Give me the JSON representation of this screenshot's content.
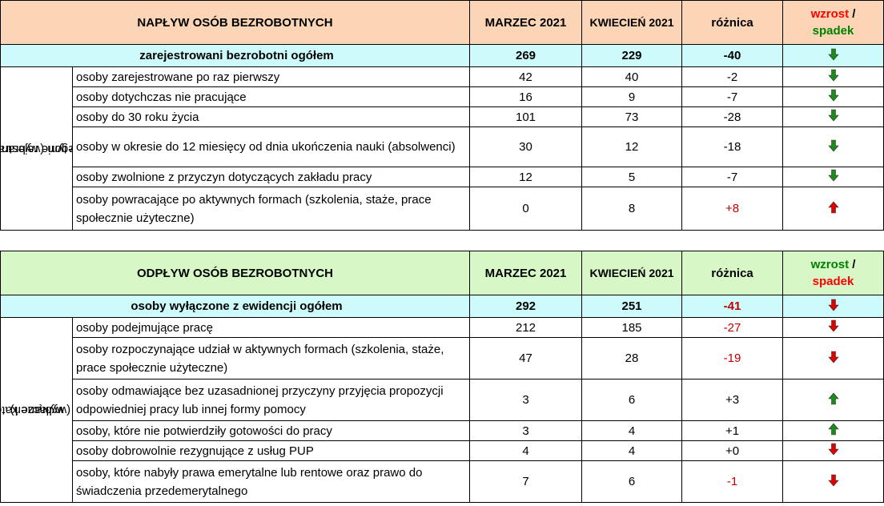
{
  "inflow": {
    "title": "NAPŁYW OSÓB BEZROBOTNYCH",
    "col_march": "MARZEC 2021",
    "col_april": "KWIECIEŃ 2021",
    "col_diff": "różnica",
    "col_trend_up": "wzrost",
    "col_trend_sep": "/",
    "col_trend_down": "spadek",
    "side_label_line1": "w tym (wybrane",
    "side_label_line2": "kategorie rejestracji)",
    "total": {
      "label": "zarejestrowani bezrobotni ogółem",
      "march": "269",
      "april": "229",
      "diff": "-40",
      "trend": "down-green"
    },
    "rows": [
      {
        "label": "osoby zarejestrowane po raz pierwszy",
        "march": "42",
        "april": "40",
        "diff": "-2",
        "trend": "down-green"
      },
      {
        "label": "osoby dotychczas nie pracujące",
        "march": "16",
        "april": "9",
        "diff": "-7",
        "trend": "down-green"
      },
      {
        "label": "osoby do 30 roku życia",
        "march": "101",
        "april": "73",
        "diff": "-28",
        "trend": "down-green"
      },
      {
        "label": "osoby w okresie do 12 miesięcy od dnia ukończenia nauki (absolwenci)",
        "march": "30",
        "april": "12",
        "diff": "-18",
        "trend": "down-green"
      },
      {
        "label": "osoby zwolnione z przyczyn dotyczących zakładu pracy",
        "march": "12",
        "april": "5",
        "diff": "-7",
        "trend": "down-green"
      },
      {
        "label": "osoby powracające po aktywnych formach (szkolenia, staże, prace społecznie użyteczne)",
        "march": "0",
        "april": "8",
        "diff": "+8",
        "trend": "up-red"
      }
    ]
  },
  "outflow": {
    "title": "ODPŁYW OSÓB BEZROBOTNYCH",
    "col_march": "MARZEC 2021",
    "col_april": "KWIECIEŃ 2021",
    "col_diff": "różnica",
    "col_trend_up": "wzrost",
    "col_trend_sep": "/",
    "col_trend_down": "spadek",
    "side_label_line1": "w tym (wybrane kategorie",
    "side_label_line2": "wyłączeń)",
    "total": {
      "label": "osoby wyłączone z ewidencji  ogółem",
      "march": "292",
      "april": "251",
      "diff": "-41",
      "trend": "down-red"
    },
    "rows": [
      {
        "label": "osoby podejmujące pracę",
        "march": "212",
        "april": "185",
        "diff": "-27",
        "trend": "down-red"
      },
      {
        "label": "osoby rozpoczynające udział w aktywnych formach (szkolenia, staże, prace społecznie użyteczne)",
        "march": "47",
        "april": "28",
        "diff": "-19",
        "trend": "down-red"
      },
      {
        "label": "osoby odmawiające bez uzasadnionej przyczyny przyjęcia propozycji odpowiedniej pracy lub innej formy pomocy",
        "march": "3",
        "april": "6",
        "diff": "+3",
        "trend": "up-green"
      },
      {
        "label": "osoby, które nie potwierdziły gotowości do pracy",
        "march": "3",
        "april": "4",
        "diff": "+1",
        "trend": "up-green"
      },
      {
        "label": "osoby dobrowolnie rezygnujące z usług PUP",
        "march": "4",
        "april": "4",
        "diff": "+0",
        "trend": "down-red"
      },
      {
        "label": "osoby, które nabyły prawa emerytalne lub rentowe oraz prawo do świadczenia przedemerytalnego",
        "march": "7",
        "april": "6",
        "diff": "-1",
        "trend": "down-red"
      }
    ]
  },
  "colors": {
    "header_inflow": "#fbd5b5",
    "header_outflow": "#d7f7c7",
    "total_row": "#cdfbfb",
    "arrow_green": "#1a8c1a",
    "arrow_red": "#e00000",
    "diff_red": "#c00000"
  }
}
